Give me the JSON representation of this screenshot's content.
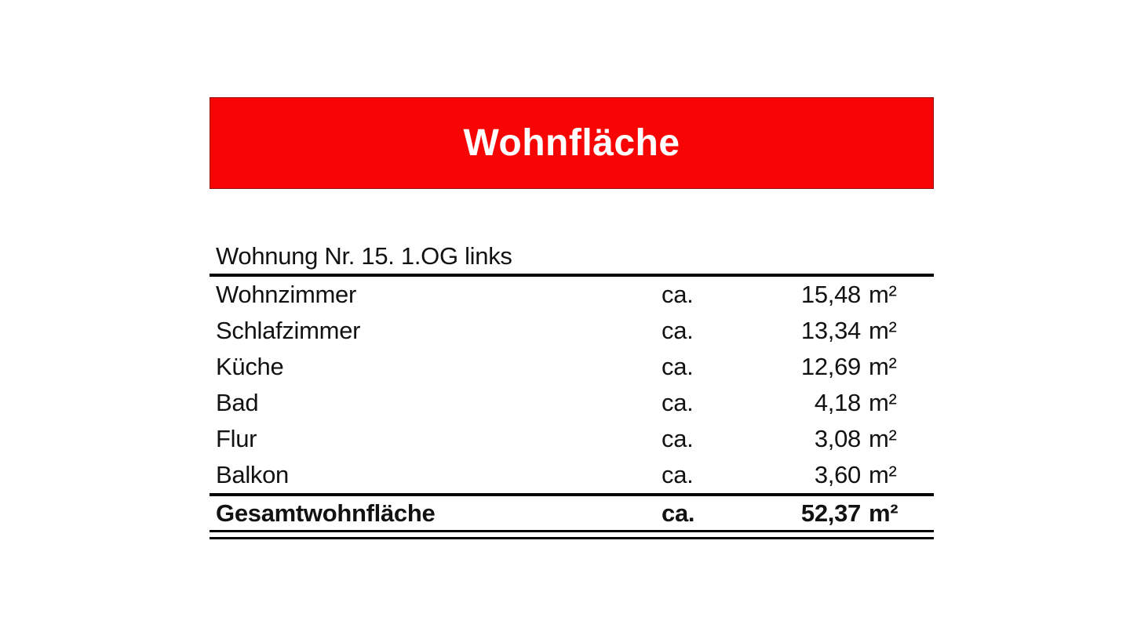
{
  "banner": {
    "title": "Wohnfläche"
  },
  "colors": {
    "banner_bg": "#f70505",
    "banner_text": "#ffffff",
    "text": "#121212",
    "rule": "#000000"
  },
  "table": {
    "header": "Wohnung Nr. 15. 1.OG links",
    "rows": [
      {
        "label": "Wohnzimmer",
        "approx": "ca.",
        "value": "15,48",
        "unit": "m²"
      },
      {
        "label": "Schlafzimmer",
        "approx": "ca.",
        "value": "13,34",
        "unit": "m²"
      },
      {
        "label": "Küche",
        "approx": "ca.",
        "value": "12,69",
        "unit": "m²"
      },
      {
        "label": "Bad",
        "approx": "ca.",
        "value": "4,18",
        "unit": "m²"
      },
      {
        "label": "Flur",
        "approx": "ca.",
        "value": "3,08",
        "unit": "m²"
      },
      {
        "label": "Balkon",
        "approx": "ca.",
        "value": "3,60",
        "unit": "m²"
      }
    ],
    "total": {
      "label": "Gesamtwohnfläche",
      "approx": "ca.",
      "value": "52,37",
      "unit": "m²"
    }
  }
}
